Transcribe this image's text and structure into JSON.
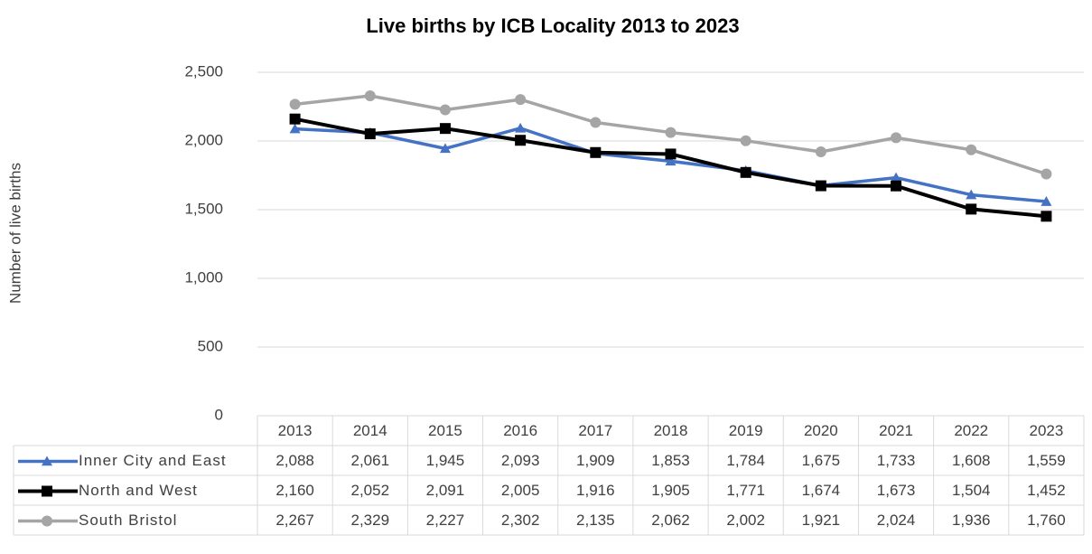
{
  "chart_data": {
    "type": "line",
    "title": "Live births by ICB Locality 2013 to 2023",
    "ylabel": "Number of live births",
    "categories": [
      "2013",
      "2014",
      "2015",
      "2016",
      "2017",
      "2018",
      "2019",
      "2020",
      "2021",
      "2022",
      "2023"
    ],
    "series": [
      {
        "name": "Inner City and East",
        "color": "#4472c4",
        "marker": "triangle",
        "values": [
          2088,
          2061,
          1945,
          2093,
          1909,
          1853,
          1784,
          1675,
          1733,
          1608,
          1559
        ],
        "value_labels": [
          "2,088",
          "2,061",
          "1,945",
          "2,093",
          "1,909",
          "1,853",
          "1,784",
          "1,675",
          "1,733",
          "1,608",
          "1,559"
        ]
      },
      {
        "name": "North and West",
        "color": "#000000",
        "marker": "square",
        "values": [
          2160,
          2052,
          2091,
          2005,
          1916,
          1905,
          1771,
          1674,
          1673,
          1504,
          1452
        ],
        "value_labels": [
          "2,160",
          "2,052",
          "2,091",
          "2,005",
          "1,916",
          "1,905",
          "1,771",
          "1,674",
          "1,673",
          "1,504",
          "1,452"
        ]
      },
      {
        "name": "South Bristol",
        "color": "#a5a5a5",
        "marker": "circle",
        "values": [
          2267,
          2329,
          2227,
          2302,
          2135,
          2062,
          2002,
          1921,
          2024,
          1936,
          1760
        ],
        "value_labels": [
          "2,267",
          "2,329",
          "2,227",
          "2,302",
          "2,135",
          "2,062",
          "2,002",
          "1,921",
          "2,024",
          "1,936",
          "1,760"
        ]
      }
    ],
    "ylim": [
      0,
      2500
    ],
    "yticks": [
      0,
      500,
      {
        "value": 1000,
        "label": "1,000"
      },
      {
        "value": 1500,
        "label": "1,500"
      },
      {
        "value": 2000,
        "label": "2,000"
      },
      {
        "value": 2500,
        "label": "2,500"
      }
    ],
    "grid": true,
    "data_table": true
  }
}
